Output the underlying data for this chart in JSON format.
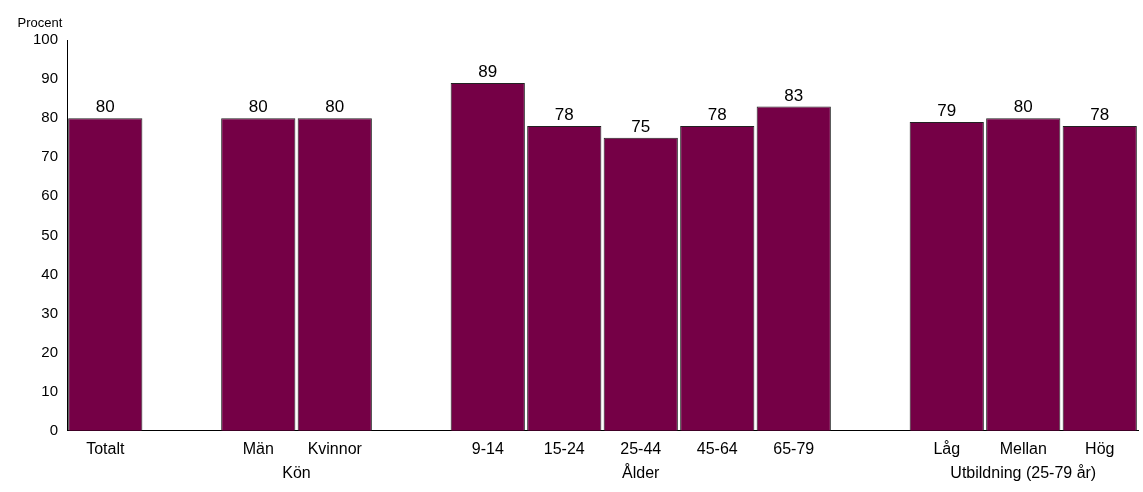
{
  "chart_data": {
    "type": "bar",
    "ylabel": "Procent",
    "categories": [
      "Totalt",
      null,
      "Män",
      "Kvinnor",
      null,
      "9-14",
      "15-24",
      "25-44",
      "45-64",
      "65-79",
      null,
      "Låg",
      "Mellan",
      "Hög"
    ],
    "values": [
      80,
      null,
      80,
      80,
      null,
      89,
      78,
      75,
      78,
      83,
      null,
      79,
      80,
      78
    ],
    "color": "#750046",
    "ylim": [
      0,
      100
    ],
    "yticks": [
      0,
      10,
      20,
      30,
      40,
      50,
      60,
      70,
      80,
      90,
      100
    ],
    "data_labels": true,
    "grid": false,
    "legend": false,
    "annotations": [
      "Kön",
      "Ålder",
      "Utbildning (25-79 år)"
    ]
  }
}
